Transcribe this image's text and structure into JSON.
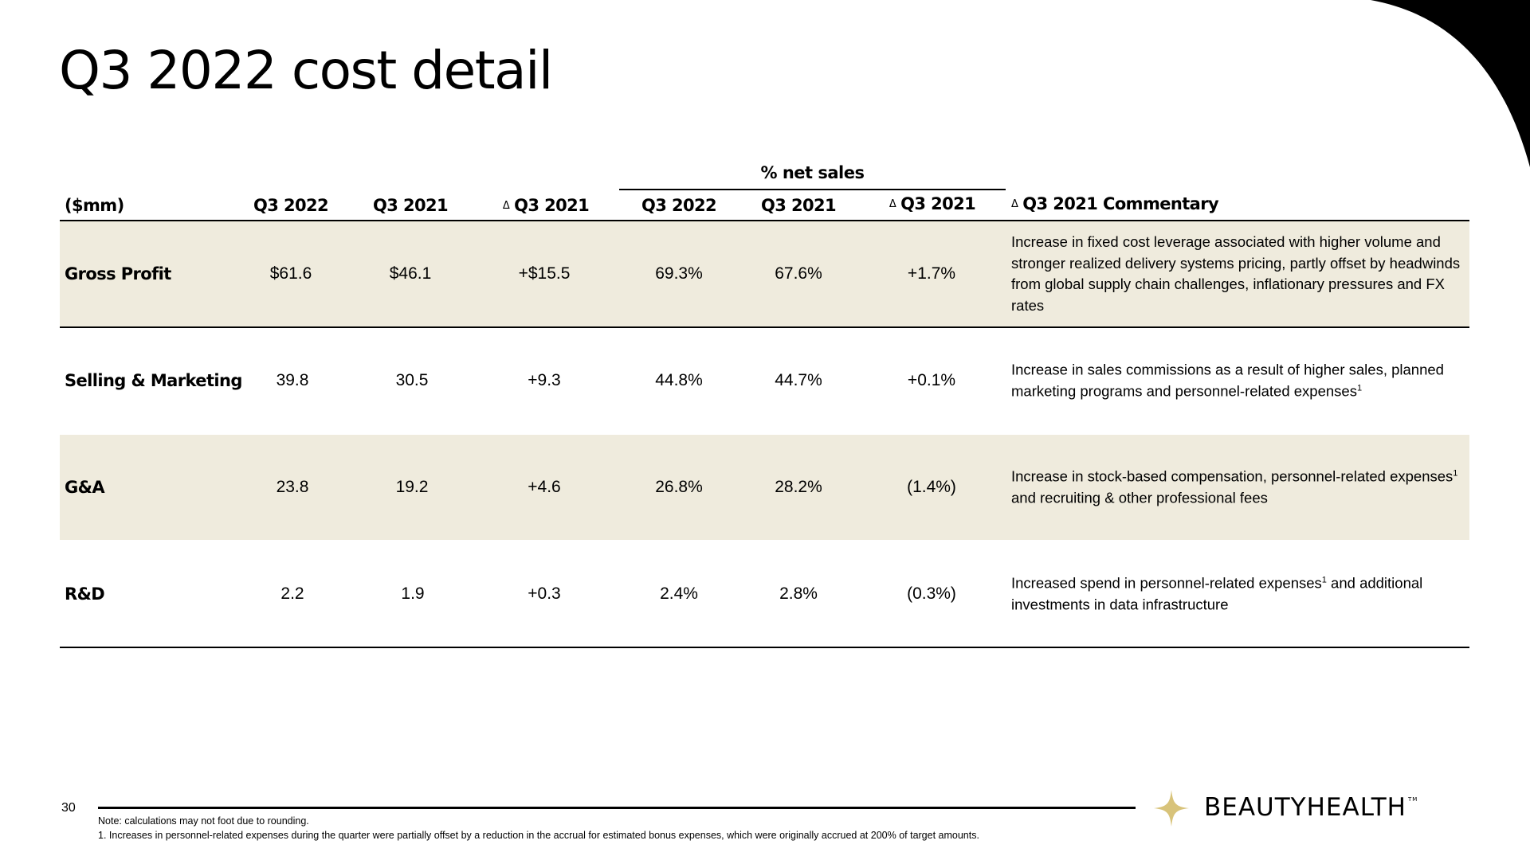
{
  "slide": {
    "title": "Q3 2022 cost detail",
    "page_number": "30",
    "colors": {
      "shaded_row": "#efebdd",
      "logo_star": "#d8c37a",
      "text": "#000000"
    }
  },
  "table": {
    "group_header": "% net sales",
    "headers": {
      "unit": "($mm)",
      "q3_2022": "Q3 2022",
      "q3_2021": "Q3 2021",
      "delta_q3_2021": "Q3 2021",
      "pct_q3_2022": "Q3 2022",
      "pct_q3_2021": "Q3 2021",
      "pct_delta_q3_2021": "Q3 2021",
      "commentary": "Q3 2021 Commentary",
      "delta_symbol": "Δ"
    },
    "rows": [
      {
        "label": "Gross Profit",
        "q3_2022": "$61.6",
        "q3_2021": "$46.1",
        "delta": "+$15.5",
        "pct_q3_2022": "69.3%",
        "pct_q3_2021": "67.6%",
        "pct_delta": "+1.7%",
        "comment_a": "Increase in fixed cost leverage associated with higher volume and stronger realized delivery systems pricing, partly offset by headwinds from global supply chain challenges, inflationary pressures and FX rates"
      },
      {
        "label": "Selling & Marketing",
        "q3_2022": "39.8",
        "q3_2021": "30.5",
        "delta": "+9.3",
        "pct_q3_2022": "44.8%",
        "pct_q3_2021": "44.7%",
        "pct_delta": "+0.1%",
        "comment_a": "Increase in sales commissions as a result of higher sales, planned marketing programs and personnel-related expenses",
        "comment_sup": "1"
      },
      {
        "label": "G&A",
        "q3_2022": "23.8",
        "q3_2021": "19.2",
        "delta": "+4.6",
        "pct_q3_2022": "26.8%",
        "pct_q3_2021": "28.2%",
        "pct_delta": "(1.4%)",
        "comment_a": "Increase in stock-based compensation, personnel-related expenses",
        "comment_sup": "1",
        "comment_b": " and recruiting & other professional fees"
      },
      {
        "label": "R&D",
        "q3_2022": "2.2",
        "q3_2021": "1.9",
        "delta": "+0.3",
        "pct_q3_2022": "2.4%",
        "pct_q3_2021": "2.8%",
        "pct_delta": "(0.3%)",
        "comment_a": "Increased spend in personnel-related expenses",
        "comment_sup": "1",
        "comment_b": " and additional investments in data infrastructure"
      }
    ]
  },
  "footer": {
    "note": "Note: calculations may not foot due to rounding.",
    "footnote": "1. Increases in personnel-related expenses during the quarter were partially offset by a reduction in the accrual for estimated bonus expenses, which were originally accrued at 200% of target amounts.",
    "logo_text": "BEAUTYHEALTH",
    "logo_tm": "TM"
  }
}
